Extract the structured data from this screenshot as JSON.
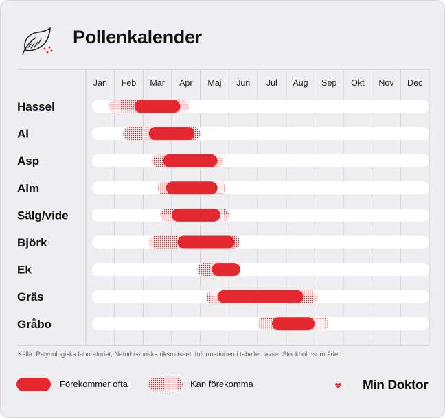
{
  "title": "Pollenkalender",
  "source": "Källa: Palynologiska laboratoriet, Naturhistoriska riksmuseet. Informationen i tabellen avser Stockholmsområdet.",
  "legend": {
    "often": "Förekommer ofta",
    "may": "Kan förekomma"
  },
  "brand": "Min Doktor",
  "colors": {
    "often": "#e4282f",
    "may": "#e4282f",
    "track": "#ffffff",
    "background": "#eeeef0",
    "grid": "#cfcfd4"
  },
  "icons": [
    "leaf-icon",
    "heart-smile-logo"
  ],
  "chart_data": {
    "type": "gantt",
    "x_unit": "month",
    "x_range": [
      0,
      12
    ],
    "months": [
      "Jan",
      "Feb",
      "Mar",
      "Apr",
      "Maj",
      "Jun",
      "Jul",
      "Aug",
      "Sep",
      "Okt",
      "Nov",
      "Dec"
    ],
    "rows": [
      {
        "label": "Hassel",
        "may": [
          0.8,
          3.6
        ],
        "often": [
          1.7,
          3.3
        ]
      },
      {
        "label": "Al",
        "may": [
          1.3,
          4.0
        ],
        "often": [
          2.2,
          3.8
        ]
      },
      {
        "label": "Asp",
        "may": [
          2.3,
          4.8
        ],
        "often": [
          2.7,
          4.6
        ]
      },
      {
        "label": "Alm",
        "may": [
          2.5,
          4.9
        ],
        "often": [
          2.8,
          4.6
        ]
      },
      {
        "label": "Sälg/vide",
        "may": [
          2.6,
          5.0
        ],
        "often": [
          3.0,
          4.7
        ]
      },
      {
        "label": "Björk",
        "may": [
          2.2,
          5.4
        ],
        "often": [
          3.2,
          5.2
        ]
      },
      {
        "label": "Ek",
        "may": [
          3.9,
          5.4
        ],
        "often": [
          4.4,
          5.4
        ]
      },
      {
        "label": "Gräs",
        "may": [
          4.2,
          8.1
        ],
        "often": [
          4.6,
          7.6
        ]
      },
      {
        "label": "Gråbo",
        "may": [
          6.0,
          8.5
        ],
        "often": [
          6.5,
          8.0
        ]
      }
    ]
  }
}
